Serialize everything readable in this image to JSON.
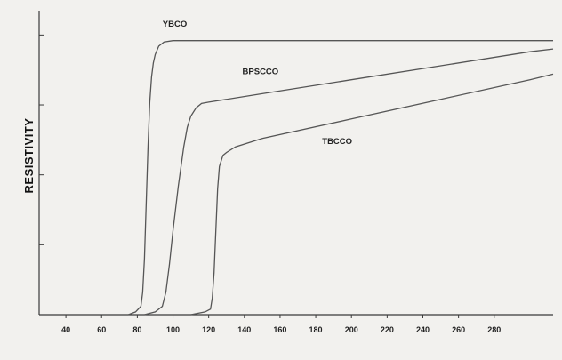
{
  "chart_data": {
    "type": "line",
    "title": "",
    "xlabel": "",
    "ylabel": "RESISTIVITY",
    "xlim": [
      25,
      313
    ],
    "ylim": [
      0,
      1
    ],
    "xticks": [
      40,
      60,
      80,
      100,
      120,
      140,
      160,
      180,
      200,
      220,
      240,
      260,
      280
    ],
    "xtick_labels": [
      "40",
      "60",
      "80",
      "100",
      "120",
      "140",
      "160",
      "180",
      "200",
      "220",
      "240",
      "260",
      "280"
    ],
    "yticks": [
      0.25,
      0.5,
      0.75,
      1.0
    ],
    "grid": false,
    "legend": "none",
    "series": [
      {
        "name": "YBCO",
        "label_at": [
          101,
          1.03
        ],
        "x": [
          75,
          79,
          82,
          83,
          84,
          85,
          86,
          87,
          88,
          89,
          90,
          92,
          95,
          100,
          150,
          200,
          250,
          300,
          313
        ],
        "y": [
          0,
          0.01,
          0.03,
          0.08,
          0.2,
          0.4,
          0.6,
          0.76,
          0.85,
          0.9,
          0.93,
          0.96,
          0.975,
          0.98,
          0.98,
          0.98,
          0.98,
          0.98,
          0.98
        ]
      },
      {
        "name": "BPSCCO",
        "label_at": [
          149,
          0.86
        ],
        "x": [
          84,
          90,
          94,
          96,
          98,
          100,
          103,
          106,
          108,
          110,
          113,
          116,
          120,
          150,
          200,
          250,
          300,
          313
        ],
        "y": [
          0,
          0.01,
          0.03,
          0.08,
          0.18,
          0.3,
          0.46,
          0.6,
          0.67,
          0.71,
          0.74,
          0.755,
          0.76,
          0.79,
          0.84,
          0.89,
          0.94,
          0.95
        ]
      },
      {
        "name": "TBCCO",
        "label_at": [
          192,
          0.61
        ],
        "x": [
          110,
          118,
          121,
          122,
          123,
          124,
          125,
          126,
          127,
          128,
          130,
          135,
          150,
          200,
          250,
          300,
          313
        ],
        "y": [
          0,
          0.01,
          0.02,
          0.06,
          0.15,
          0.3,
          0.45,
          0.53,
          0.55,
          0.57,
          0.58,
          0.6,
          0.63,
          0.7,
          0.77,
          0.84,
          0.86
        ]
      }
    ]
  }
}
